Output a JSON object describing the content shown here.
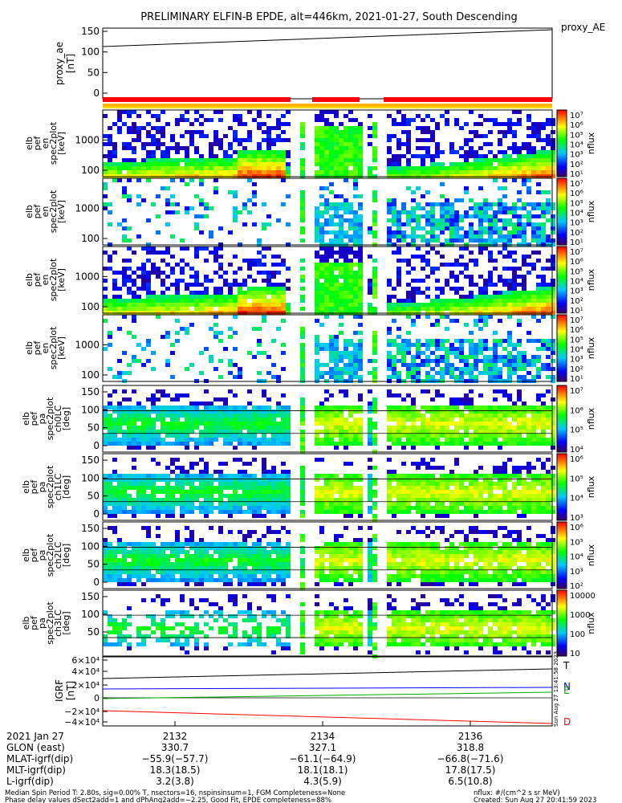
{
  "title": "PRELIMINARY ELFIN-B EPDE, alt=446km, 2021-01-27, South Descending",
  "top_right_label": "proxy_AE",
  "vertical_timestamp": "Sun Aug 27 13:41:58 2023",
  "proxy_ae": {
    "ylabel": [
      "proxy_ae",
      "[nT]"
    ],
    "yticks": [
      "0",
      "50",
      "100",
      "150"
    ],
    "values": [
      110,
      155
    ]
  },
  "bar_colors": {
    "red": "#ff0000",
    "orange": "#ffb400",
    "yellow": "#ffdc00"
  },
  "spec_panels": [
    {
      "ylabel": [
        "elb",
        "pef",
        "en",
        "spec2plot",
        "[keV]"
      ],
      "yticks": [
        "100",
        "1000"
      ],
      "cbar_ticks": [
        "10⁷",
        "10⁶",
        "10⁵",
        "10⁴",
        "10³",
        "10²",
        "10¹"
      ],
      "cbar_label": "nflux"
    },
    {
      "ylabel": [
        "elb",
        "pef",
        "en",
        "spec2plot",
        "[keV]"
      ],
      "yticks": [
        "100",
        "1000"
      ],
      "cbar_ticks": [
        "10⁷",
        "10⁶",
        "10⁵",
        "10⁴",
        "10³",
        "10²",
        "10¹"
      ],
      "cbar_label": "nflux"
    },
    {
      "ylabel": [
        "elb",
        "pef",
        "en",
        "spec2plot",
        "[keV]"
      ],
      "yticks": [
        "100",
        "1000"
      ],
      "cbar_ticks": [
        "10⁷",
        "10⁶",
        "10⁵",
        "10⁴",
        "10³",
        "10²",
        "10¹"
      ],
      "cbar_label": "nflux"
    },
    {
      "ylabel": [
        "elb",
        "pef",
        "en",
        "spec2plot",
        "[keV]"
      ],
      "yticks": [
        "100",
        "1000"
      ],
      "cbar_ticks": [
        "10⁷",
        "10⁶",
        "10⁵",
        "10⁴",
        "10³",
        "10²",
        "10¹"
      ],
      "cbar_label": "nflux"
    },
    {
      "ylabel": [
        "elb",
        "pef",
        "pa",
        "spec2plot",
        "ch0LC",
        "[deg]"
      ],
      "yticks": [
        "0",
        "50",
        "100",
        "150"
      ],
      "cbar_ticks": [
        "10⁷",
        "10⁶",
        "10⁵",
        "10⁴"
      ],
      "cbar_label": "nflux"
    },
    {
      "ylabel": [
        "elb",
        "pef",
        "pa",
        "spec2plot",
        "ch1LC",
        "[deg]"
      ],
      "yticks": [
        "0",
        "50",
        "100",
        "150"
      ],
      "cbar_ticks": [
        "10⁶",
        "10⁵",
        "10⁴",
        "10³"
      ],
      "cbar_label": "nflux"
    },
    {
      "ylabel": [
        "elb",
        "pef",
        "pa",
        "spec2plot",
        "ch2LC",
        "[deg]"
      ],
      "yticks": [
        "0",
        "50",
        "100",
        "150"
      ],
      "cbar_ticks": [
        "10⁶",
        "10⁵",
        "10⁴",
        "10³",
        "10²"
      ],
      "cbar_label": "nflux"
    },
    {
      "ylabel": [
        "elb",
        "pef",
        "pa",
        "spec2plot",
        "ch3LC",
        "[deg]"
      ],
      "yticks": [
        "50",
        "100",
        "150"
      ],
      "cbar_ticks": [
        "10000",
        "1000",
        "100",
        "10"
      ],
      "cbar_label": "nflux"
    }
  ],
  "igrf": {
    "ylabel": [
      "IGRF",
      "[nT]"
    ],
    "yticks": [
      "6×10⁴",
      "4×10⁴",
      "2×10⁴",
      "0",
      "−2×10⁴",
      "−4×10⁴"
    ],
    "legend": [
      "T",
      "N",
      "E",
      "D"
    ],
    "legend_colors": [
      "#000000",
      "#0000ff",
      "#00aa00",
      "#ff0000"
    ]
  },
  "footer": {
    "row_labels": [
      "2021 Jan 27",
      "GLON (east)",
      "MLAT-igrf(dip)",
      "MLT-igrf(dip)",
      "L-igrf(dip)"
    ],
    "columns": [
      {
        "time": "2132",
        "glon": "330.7",
        "mlat": "−55.9(−57.7)",
        "mlt": "18.3(18.5)",
        "l": "3.2(3.8)"
      },
      {
        "time": "2134",
        "glon": "327.1",
        "mlat": "−61.1(−64.9)",
        "mlt": "18.1(18.1)",
        "l": "4.3(5.9)"
      },
      {
        "time": "2136",
        "glon": "318.8",
        "mlat": "−66.8(−71.6)",
        "mlt": "17.8(17.5)",
        "l": "6.5(10.8)"
      }
    ],
    "note1": "Median Spin Period T: 2.80s, sig=0.00% T, nsectors=16, nspinsinsum=1, FGM Completeness=None",
    "note2": "Phase delay values dSect2add=1 and dPhAng2add=−2.25, Good Fit, EPDE completeness=88%",
    "units": "nflux: #/(cm^2 s sr MeV)",
    "created": "Created: Sun Aug 27 20:41:59 2023"
  },
  "chart_data": {
    "type": "heatmap",
    "x_tick_labels": [
      "2132",
      "2134",
      "2136"
    ],
    "colormap": "rainbow",
    "panels": [
      "proxy_ae",
      "energy spectrogram x4",
      "pitch-angle spectrogram x4",
      "IGRF components"
    ]
  }
}
